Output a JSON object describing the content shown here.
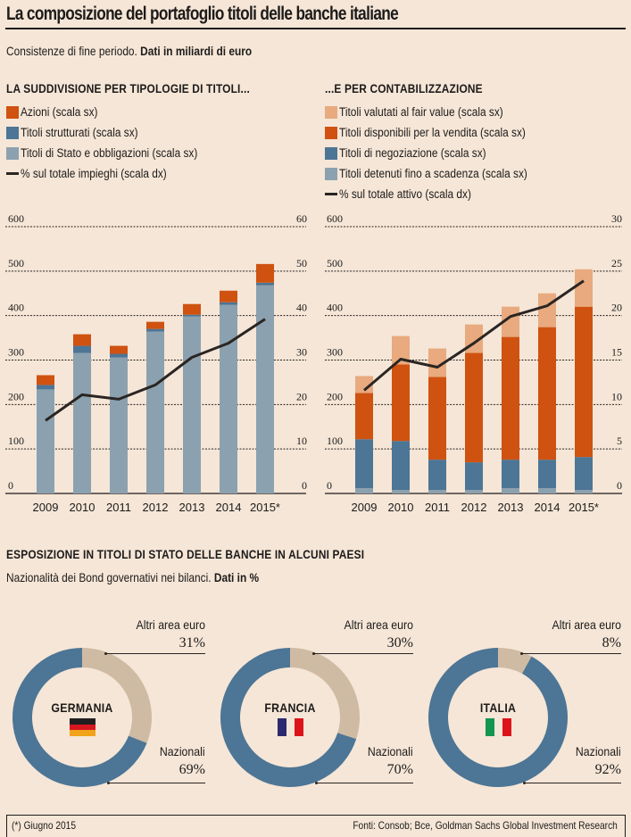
{
  "header": {
    "title": "La composizione del portafoglio titoli delle banche italiane",
    "subtitle_plain": "Consistenze di fine periodo. ",
    "subtitle_bold": "Dati in miliardi di euro"
  },
  "colors": {
    "background": "#f5e6d7",
    "azioni": "#cf5211",
    "strutturati": "#4d7595",
    "stato": "#8ca1af",
    "fair_value": "#e8aa7e",
    "disponibili": "#cf5211",
    "negoziazione": "#4d7595",
    "scadenza": "#8ca1af",
    "line": "#2a2523",
    "nazionali": "#4d7595",
    "altri": "#cfbba3"
  },
  "chart_data": [
    {
      "type": "bar",
      "stacked": true,
      "title": "LA SUDDIVISIONE PER TIPOLOGIE DI TITOLI...",
      "categories": [
        "2009",
        "2010",
        "2011",
        "2012",
        "2013",
        "2014",
        "2015*"
      ],
      "ylim_left": [
        0,
        600
      ],
      "ylim_right": [
        0,
        60
      ],
      "yticks_left": [
        "0",
        "100",
        "200",
        "300",
        "400",
        "500",
        "600"
      ],
      "yticks_right": [
        "0",
        "10",
        "20",
        "30",
        "40",
        "50",
        "60"
      ],
      "grid": true,
      "legend_position": "top-left",
      "series": [
        {
          "name": "Titoli di Stato e obbligazioni (scala sx)",
          "key": "stato",
          "axis": "left",
          "values": [
            234,
            316,
            306,
            364,
            398,
            424,
            468
          ]
        },
        {
          "name": "Titoli strutturati (scala sx)",
          "key": "strutturati",
          "axis": "left",
          "values": [
            10,
            16,
            8,
            6,
            4,
            6,
            6
          ]
        },
        {
          "name": "Azioni (scala sx)",
          "key": "azioni",
          "axis": "left",
          "values": [
            22,
            26,
            18,
            16,
            24,
            26,
            42
          ]
        }
      ],
      "line": {
        "name": "% sul totale impieghi (scala dx)",
        "axis": "right",
        "values": [
          16.4,
          22.2,
          21.2,
          24.4,
          30.6,
          33.8,
          39.2
        ]
      },
      "legend": [
        {
          "label": "Azioni (scala sx)",
          "key": "azioni",
          "kind": "box"
        },
        {
          "label": "Titoli strutturati (scala sx)",
          "key": "strutturati",
          "kind": "box"
        },
        {
          "label": "Titoli di Stato e obbligazioni (scala sx)",
          "key": "stato",
          "kind": "box"
        },
        {
          "label": "% sul totale impieghi (scala dx)",
          "key": "line",
          "kind": "line"
        }
      ]
    },
    {
      "type": "bar",
      "stacked": true,
      "title": "...E PER CONTABILIZZAZIONE",
      "categories": [
        "2009",
        "2010",
        "2011",
        "2012",
        "2013",
        "2014",
        "2015*"
      ],
      "ylim_left": [
        0,
        600
      ],
      "ylim_right": [
        0,
        30
      ],
      "yticks_left": [
        "0",
        "100",
        "200",
        "300",
        "400",
        "500",
        "600"
      ],
      "yticks_right": [
        "0",
        "5",
        "10",
        "15",
        "20",
        "25",
        "30"
      ],
      "grid": true,
      "legend_position": "top-left",
      "series": [
        {
          "name": "Titoli detenuti fino a scadenza (scala sx)",
          "key": "scadenza",
          "axis": "left",
          "values": [
            12,
            8,
            8,
            8,
            12,
            12,
            8
          ]
        },
        {
          "name": "Titoli di negoziazione (scala sx)",
          "key": "negoziazione",
          "axis": "left",
          "values": [
            110,
            110,
            68,
            62,
            64,
            64,
            74
          ]
        },
        {
          "name": "Titoli disponibili per la vendita (scala sx)",
          "key": "disponibili",
          "axis": "left",
          "values": [
            104,
            172,
            186,
            246,
            276,
            298,
            338
          ]
        },
        {
          "name": "Titoli valutati al fair value (scala sx)",
          "key": "fair_value",
          "axis": "left",
          "values": [
            38,
            64,
            64,
            64,
            68,
            76,
            84
          ]
        }
      ],
      "line": {
        "name": "% sul totale attivo (scala dx)",
        "axis": "right",
        "values": [
          11.6,
          15.1,
          14.2,
          16.9,
          19.9,
          21.1,
          23.9
        ]
      },
      "legend": [
        {
          "label": "Titoli valutati al fair value (scala sx)",
          "key": "fair_value",
          "kind": "box"
        },
        {
          "label": "Titoli disponibili per la vendita (scala sx)",
          "key": "disponibili",
          "kind": "box"
        },
        {
          "label": "Titoli di negoziazione (scala sx)",
          "key": "negoziazione",
          "kind": "box"
        },
        {
          "label": "Titoli detenuti fino a scadenza (scala sx)",
          "key": "scadenza",
          "kind": "box"
        },
        {
          "label": "% sul totale attivo (scala dx)",
          "key": "line",
          "kind": "line"
        }
      ]
    },
    {
      "type": "pie",
      "donut": true,
      "title": "ESPOSIZIONE IN TITOLI DI STATO DELLE BANCHE IN ALCUNI PAESI",
      "subtitle_plain": "Nazionalità dei Bond governativi nei bilanci. ",
      "subtitle_bold": "Dati in %",
      "charts": [
        {
          "country": "GERMANIA",
          "flag": "germany",
          "slices": [
            {
              "label": "Altri area euro",
              "value": 31,
              "text": "31%"
            },
            {
              "label": "Nazionali",
              "value": 69,
              "text": "69%"
            }
          ]
        },
        {
          "country": "FRANCIA",
          "flag": "france",
          "slices": [
            {
              "label": "Altri area euro",
              "value": 30,
              "text": "30%"
            },
            {
              "label": "Nazionali",
              "value": 70,
              "text": "70%"
            }
          ]
        },
        {
          "country": "ITALIA",
          "flag": "italy",
          "slices": [
            {
              "label": "Altri area euro",
              "value": 8,
              "text": "8%"
            },
            {
              "label": "Nazionali",
              "value": 92,
              "text": "92%"
            }
          ]
        }
      ]
    }
  ],
  "footer": {
    "note": "(*) Giugno 2015",
    "sources": "Fonti: Consob; Bce, Goldman Sachs Global Investment Research"
  }
}
